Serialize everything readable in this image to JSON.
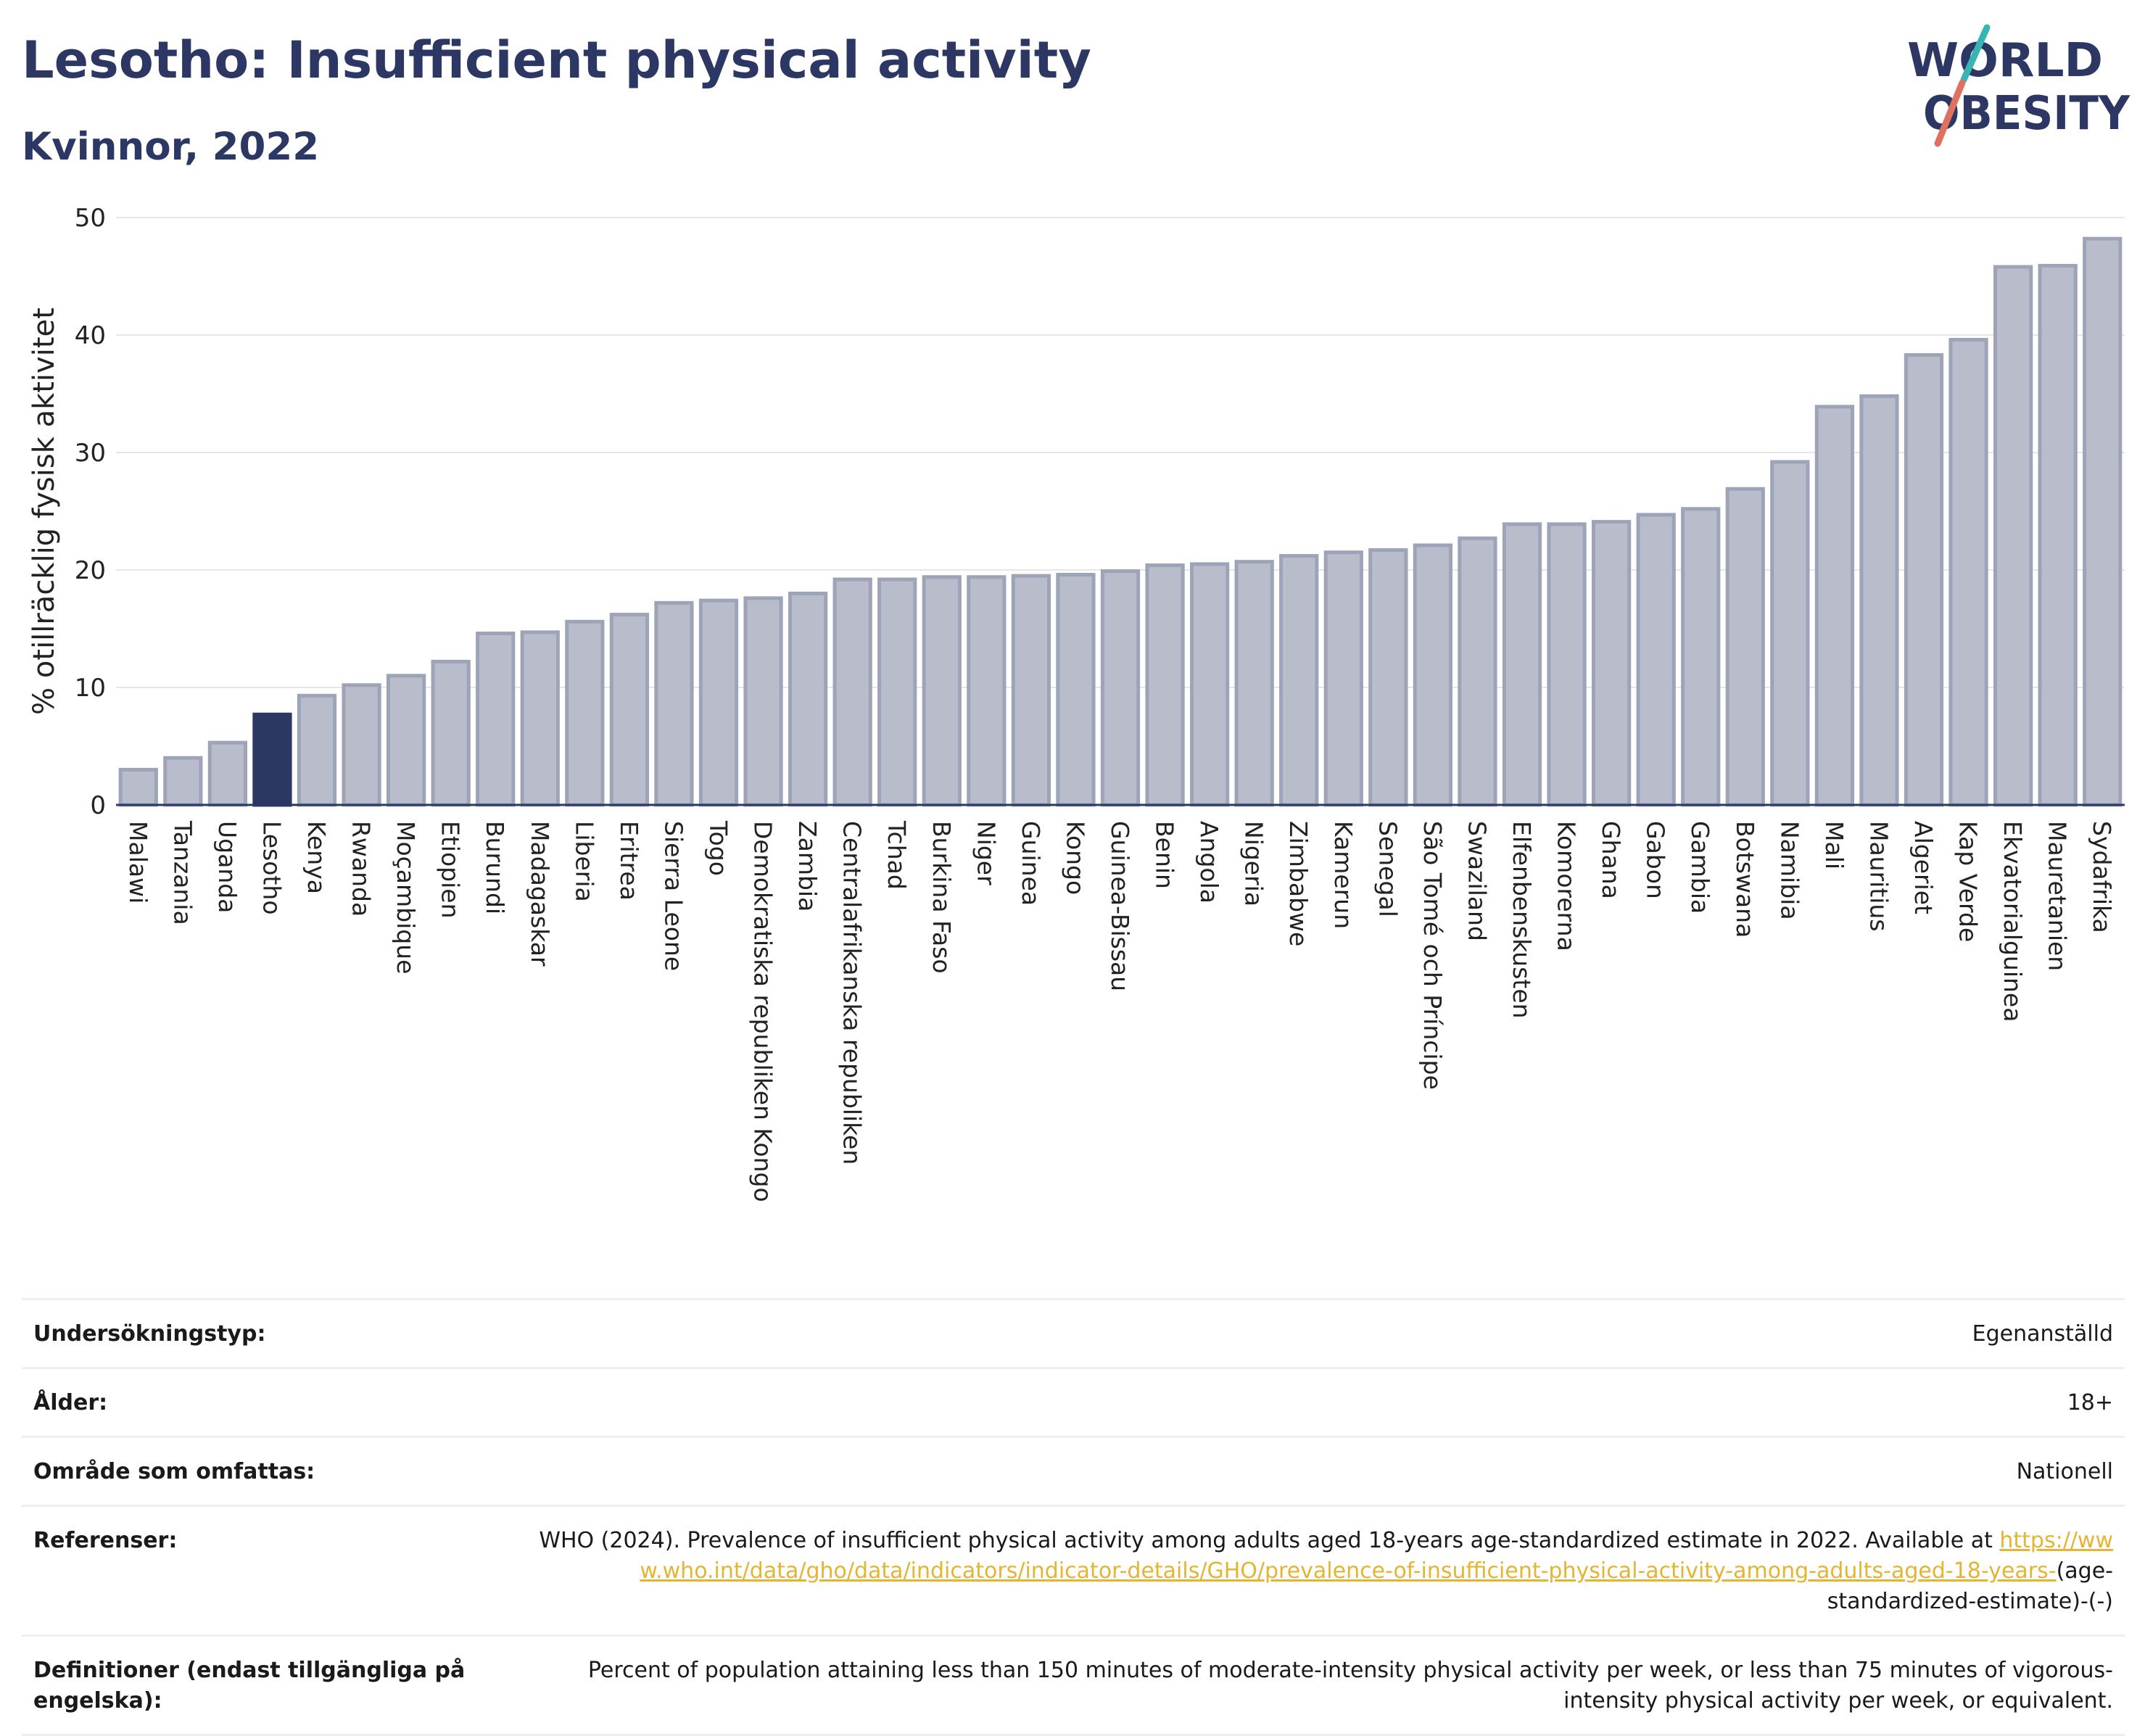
{
  "header": {
    "title": "Lesotho: Insufficient physical activity",
    "subtitle": "Kvinnor, 2022"
  },
  "logo": {
    "line1": "WORLD",
    "line2": "OBESITY",
    "accent": "#e0705f",
    "accent2": "#37b5b4",
    "color": "#2c3764"
  },
  "chart_data": {
    "type": "bar",
    "ylabel": "% otillräcklig fysisk aktivitet",
    "ylim": [
      0,
      50
    ],
    "yticks": [
      0,
      10,
      20,
      30,
      40,
      50
    ],
    "grid": true,
    "highlight": "Lesotho",
    "colors": {
      "bar": "#b8bccb",
      "bar_edge": "#9ea4b8",
      "highlight": "#2c3764"
    },
    "categories": [
      "Malawi",
      "Tanzania",
      "Uganda",
      "Lesotho",
      "Kenya",
      "Rwanda",
      "Moçambique",
      "Etiopien",
      "Burundi",
      "Madagaskar",
      "Liberia",
      "Eritrea",
      "Sierra Leone",
      "Togo",
      "Demokratiska republiken Kongo",
      "Zambia",
      "Centralafrikanska republiken",
      "Tchad",
      "Burkina Faso",
      "Niger",
      "Guinea",
      "Kongo",
      "Guinea-Bissau",
      "Benin",
      "Angola",
      "Nigeria",
      "Zimbabwe",
      "Kamerun",
      "Senegal",
      "São Tomé och Príncipe",
      "Swaziland",
      "Elfenbenskusten",
      "Komorerna",
      "Ghana",
      "Gabon",
      "Gambia",
      "Botswana",
      "Namibia",
      "Mali",
      "Mauritius",
      "Algeriet",
      "Kap Verde",
      "Ekvatorialguinea",
      "Mauretanien",
      "Sydafrika"
    ],
    "values": [
      3.0,
      4.0,
      5.3,
      7.7,
      9.3,
      10.2,
      11.0,
      12.2,
      14.6,
      14.7,
      15.6,
      16.2,
      17.2,
      17.4,
      17.6,
      18.0,
      19.2,
      19.2,
      19.4,
      19.4,
      19.5,
      19.6,
      19.9,
      20.4,
      20.5,
      20.7,
      21.2,
      21.5,
      21.7,
      22.1,
      22.7,
      23.9,
      23.9,
      24.1,
      24.7,
      25.2,
      26.9,
      29.2,
      33.9,
      34.8,
      38.3,
      39.6,
      45.8,
      45.9,
      48.2
    ]
  },
  "meta": [
    {
      "key": "Undersökningstyp:",
      "value": "Egenanställd"
    },
    {
      "key": "Ålder:",
      "value": "18+"
    },
    {
      "key": "Område som omfattas:",
      "value": "Nationell"
    }
  ],
  "references": {
    "key": "Referenser:",
    "text": "WHO (2024). Prevalence of insufficient physical activity among adults aged 18-years age-standardized estimate in 2022. Available at",
    "link": "https://www.who.int/data/gho/data/indicators/indicator-details/GHO/prevalence-of-insufficient-physical-activity-among-adults-aged-18-years-",
    "suffix": "(age-standardized-estimate)-(-)"
  },
  "definitions": {
    "key": "Definitioner (endast tillgängliga på engelska):",
    "value": "Percent of population attaining less than 150 minutes of moderate-intensity physical activity per week, or less than 75 minutes of vigorous-intensity physical activity per week, or equivalent."
  }
}
